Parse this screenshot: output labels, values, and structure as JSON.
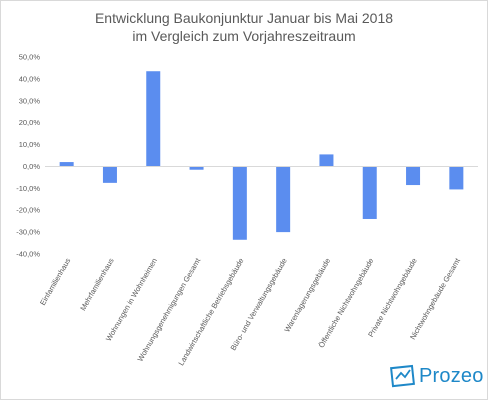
{
  "chart_data": {
    "type": "bar",
    "title_lines": [
      "Entwicklung Baukonjunktur Januar bis Mai 2018",
      "im Vergleich zum Vorjahreszeitraum"
    ],
    "categories": [
      "Einfamilienhaus",
      "Mehrfamilienhaus",
      "Wohnungen in Wohnheimen",
      "Wohnungsgenehmigungen Gesamt",
      "Landwirtschaftliche Betriebsgebäude",
      "Büro- und Verwaltungsgebäude",
      "Warenlagerungsgebäude",
      "Öffentliche Nichtwohngebäude",
      "Private Nichtwohngebäude",
      "Nichtwohngebäude Gesamt"
    ],
    "values": [
      2.0,
      -7.5,
      43.5,
      -1.5,
      -33.5,
      -30.0,
      5.5,
      -24.0,
      -8.5,
      -10.5
    ],
    "y_ticks": [
      50,
      40,
      30,
      20,
      10,
      0,
      -10,
      -20,
      -30,
      -40
    ],
    "y_tick_labels": [
      "50,0%",
      "40,0%",
      "30,0%",
      "20,0%",
      "10,0%",
      "0,0%",
      "-10,0%",
      "-20,0%",
      "-30,0%",
      "-40,0%"
    ],
    "ylim": [
      -40,
      50
    ],
    "grid": false,
    "bar_color": "#5b8def"
  },
  "branding": {
    "logo_text": "Prozeo",
    "logo_color": "#1e88c8"
  }
}
